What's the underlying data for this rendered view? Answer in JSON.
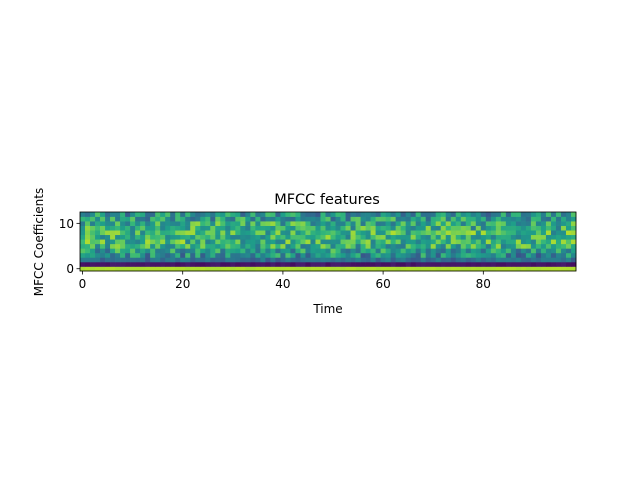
{
  "chart_data": {
    "type": "heatmap",
    "title": "MFCC features",
    "xlabel": "Time",
    "ylabel": "MFCC Coefficients",
    "xlim": [
      -0.5,
      98.5
    ],
    "ylim": [
      -0.5,
      12.5
    ],
    "xticks": [
      0,
      20,
      40,
      60,
      80
    ],
    "xtick_labels": [
      "0",
      "20",
      "40",
      "60",
      "80"
    ],
    "yticks": [
      0,
      10
    ],
    "ytick_labels": [
      "0",
      "10"
    ],
    "n_frames": 99,
    "n_coefficients": 13,
    "colormap": "viridis",
    "value_scale": "normalized 0-1",
    "row_profile": [
      {
        "coefficient": 0,
        "mean": 0.88
      },
      {
        "coefficient": 1,
        "mean": 0.06
      },
      {
        "coefficient": 2,
        "mean": 0.36
      },
      {
        "coefficient": 3,
        "mean": 0.48
      },
      {
        "coefficient": 4,
        "mean": 0.55
      },
      {
        "coefficient": 5,
        "mean": 0.62
      },
      {
        "coefficient": 6,
        "mean": 0.66
      },
      {
        "coefficient": 7,
        "mean": 0.64
      },
      {
        "coefficient": 8,
        "mean": 0.66
      },
      {
        "coefficient": 9,
        "mean": 0.63
      },
      {
        "coefficient": 10,
        "mean": 0.62
      },
      {
        "coefficient": 11,
        "mean": 0.55
      },
      {
        "coefficient": 12,
        "mean": 0.5
      }
    ],
    "grid": false,
    "legend": "none"
  }
}
